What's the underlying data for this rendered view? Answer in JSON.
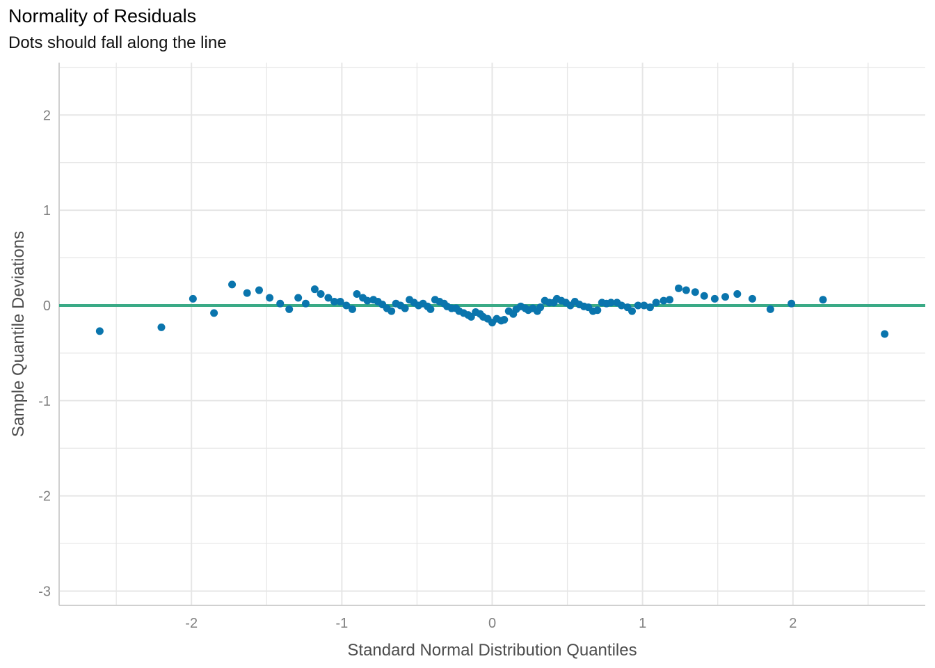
{
  "title": "Normality of Residuals",
  "subtitle": "Dots should fall along the line",
  "colors": {
    "points": "#0a75ad",
    "reference_line": "#3aaa86",
    "grid": "#e6e6e6"
  },
  "chart_data": {
    "type": "scatter",
    "title": "Normality of Residuals",
    "subtitle": "Dots should fall along the line",
    "xlabel": "Standard Normal Distribution Quantiles",
    "ylabel": "Sample Quantile Deviations",
    "xlim": [
      -2.88,
      2.88
    ],
    "ylim": [
      -3.15,
      2.55
    ],
    "x_ticks": [
      -2,
      -1,
      0,
      1,
      2
    ],
    "y_ticks": [
      -3,
      -2,
      -1,
      0,
      1,
      2
    ],
    "grid": true,
    "reference_line": {
      "y": 0
    },
    "points": [
      [
        -2.61,
        -0.27
      ],
      [
        -2.2,
        -0.23
      ],
      [
        -1.99,
        0.07
      ],
      [
        -1.85,
        -0.08
      ],
      [
        -1.73,
        0.22
      ],
      [
        -1.63,
        0.13
      ],
      [
        -1.55,
        0.16
      ],
      [
        -1.48,
        0.08
      ],
      [
        -1.41,
        0.02
      ],
      [
        -1.35,
        -0.04
      ],
      [
        -1.29,
        0.08
      ],
      [
        -1.24,
        0.02
      ],
      [
        -1.18,
        0.17
      ],
      [
        -1.14,
        0.12
      ],
      [
        -1.09,
        0.08
      ],
      [
        -1.05,
        0.04
      ],
      [
        -1.01,
        0.04
      ],
      [
        -0.97,
        0.0
      ],
      [
        -0.93,
        -0.04
      ],
      [
        -0.9,
        0.12
      ],
      [
        -0.86,
        0.08
      ],
      [
        -0.83,
        0.05
      ],
      [
        -0.79,
        0.06
      ],
      [
        -0.76,
        0.04
      ],
      [
        -0.73,
        0.01
      ],
      [
        -0.7,
        -0.03
      ],
      [
        -0.67,
        -0.06
      ],
      [
        -0.64,
        0.02
      ],
      [
        -0.61,
        0.0
      ],
      [
        -0.58,
        -0.03
      ],
      [
        -0.55,
        0.06
      ],
      [
        -0.52,
        0.03
      ],
      [
        -0.49,
        0.0
      ],
      [
        -0.46,
        0.02
      ],
      [
        -0.43,
        -0.01
      ],
      [
        -0.41,
        -0.04
      ],
      [
        -0.38,
        0.06
      ],
      [
        -0.35,
        0.04
      ],
      [
        -0.32,
        0.02
      ],
      [
        -0.3,
        -0.01
      ],
      [
        -0.27,
        -0.03
      ],
      [
        -0.24,
        -0.03
      ],
      [
        -0.22,
        -0.06
      ],
      [
        -0.19,
        -0.08
      ],
      [
        -0.16,
        -0.1
      ],
      [
        -0.14,
        -0.12
      ],
      [
        -0.11,
        -0.07
      ],
      [
        -0.08,
        -0.09
      ],
      [
        -0.06,
        -0.12
      ],
      [
        -0.03,
        -0.14
      ],
      [
        0.0,
        -0.18
      ],
      [
        0.03,
        -0.14
      ],
      [
        0.06,
        -0.16
      ],
      [
        0.08,
        -0.15
      ],
      [
        0.11,
        -0.06
      ],
      [
        0.14,
        -0.09
      ],
      [
        0.16,
        -0.04
      ],
      [
        0.19,
        -0.01
      ],
      [
        0.22,
        -0.03
      ],
      [
        0.24,
        -0.05
      ],
      [
        0.27,
        -0.03
      ],
      [
        0.3,
        -0.06
      ],
      [
        0.32,
        -0.02
      ],
      [
        0.35,
        0.05
      ],
      [
        0.38,
        0.03
      ],
      [
        0.41,
        0.03
      ],
      [
        0.43,
        0.07
      ],
      [
        0.46,
        0.05
      ],
      [
        0.49,
        0.03
      ],
      [
        0.52,
        0.0
      ],
      [
        0.55,
        0.04
      ],
      [
        0.58,
        0.01
      ],
      [
        0.61,
        -0.01
      ],
      [
        0.64,
        -0.02
      ],
      [
        0.67,
        -0.06
      ],
      [
        0.7,
        -0.05
      ],
      [
        0.73,
        0.03
      ],
      [
        0.76,
        0.02
      ],
      [
        0.79,
        0.03
      ],
      [
        0.83,
        0.03
      ],
      [
        0.86,
        0.0
      ],
      [
        0.9,
        -0.02
      ],
      [
        0.93,
        -0.06
      ],
      [
        0.97,
        0.0
      ],
      [
        1.01,
        0.0
      ],
      [
        1.05,
        -0.02
      ],
      [
        1.09,
        0.03
      ],
      [
        1.14,
        0.05
      ],
      [
        1.18,
        0.06
      ],
      [
        1.24,
        0.18
      ],
      [
        1.29,
        0.16
      ],
      [
        1.35,
        0.14
      ],
      [
        1.41,
        0.1
      ],
      [
        1.48,
        0.07
      ],
      [
        1.55,
        0.09
      ],
      [
        1.63,
        0.12
      ],
      [
        1.73,
        0.07
      ],
      [
        1.85,
        -0.04
      ],
      [
        1.99,
        0.02
      ],
      [
        2.2,
        0.06
      ],
      [
        2.61,
        -0.3
      ]
    ]
  }
}
